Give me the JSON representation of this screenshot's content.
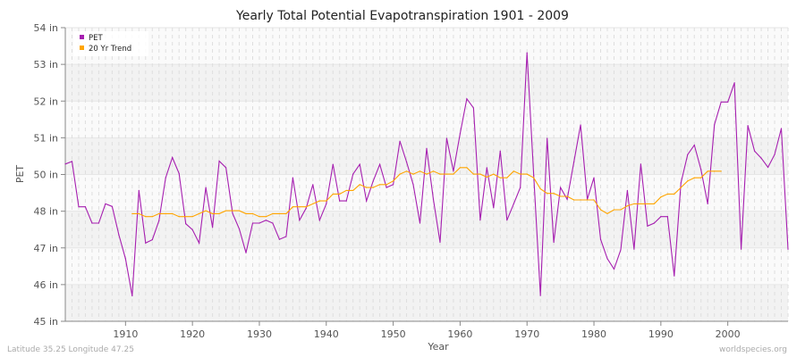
{
  "chart_data": {
    "type": "line",
    "title": "Yearly Total Potential Evapotranspiration 1901 - 2009",
    "xlabel": "Year",
    "ylabel": "PET",
    "xlim": [
      1901,
      2009
    ],
    "ylim": [
      45,
      54
    ],
    "x_ticks": [
      1910,
      1920,
      1930,
      1940,
      1950,
      1960,
      1970,
      1980,
      1990,
      2000
    ],
    "y_ticks": [
      {
        "value": 45,
        "label": "45 in"
      },
      {
        "value": 46.125,
        "label": "46 in"
      },
      {
        "value": 47.25,
        "label": "47 in"
      },
      {
        "value": 48.375,
        "label": "48 in"
      },
      {
        "value": 49.5,
        "label": "50 in"
      },
      {
        "value": 50.625,
        "label": "51 in"
      },
      {
        "value": 51.75,
        "label": "52 in"
      },
      {
        "value": 52.875,
        "label": "53 in"
      },
      {
        "value": 54,
        "label": "54 in"
      }
    ],
    "grid": true,
    "legend_position": "top-left",
    "series": [
      {
        "name": "PET",
        "color": "#a61fb0",
        "x_start": 1901,
        "values": [
          49.82,
          49.9,
          48.51,
          48.51,
          48.01,
          48.01,
          48.6,
          48.52,
          47.65,
          46.92,
          45.78,
          49.01,
          47.4,
          47.5,
          48.08,
          49.4,
          50.02,
          49.53,
          47.99,
          47.81,
          47.4,
          49.1,
          47.88,
          49.91,
          49.71,
          48.31,
          47.83,
          47.1,
          48.01,
          48.01,
          48.1,
          48.01,
          47.51,
          47.6,
          49.4,
          48.1,
          48.47,
          49.19,
          48.1,
          48.6,
          49.81,
          48.69,
          48.69,
          49.51,
          49.81,
          48.69,
          49.29,
          49.81,
          49.1,
          49.19,
          50.52,
          49.88,
          49.19,
          48.01,
          50.3,
          48.74,
          47.42,
          50.61,
          49.6,
          50.75,
          51.82,
          51.54,
          48.1,
          49.71,
          48.48,
          50.22,
          48.1,
          48.6,
          49.1,
          53.23,
          49.47,
          45.79,
          50.61,
          47.42,
          49.1,
          48.74,
          49.88,
          51.02,
          48.74,
          49.4,
          47.51,
          46.92,
          46.6,
          47.19,
          49.01,
          47.21,
          49.82,
          47.92,
          48.01,
          48.21,
          48.21,
          46.39,
          49.24,
          50.11,
          50.4,
          49.65,
          48.6,
          51.02,
          51.72,
          51.72,
          52.31,
          47.21,
          51.0,
          50.22,
          50.0,
          49.72,
          50.11,
          50.91,
          47.21
        ]
      },
      {
        "name": "20 Yr Trend",
        "color": "#ffa500",
        "x_start": 1911,
        "values": [
          48.3,
          48.3,
          48.21,
          48.21,
          48.3,
          48.3,
          48.3,
          48.21,
          48.21,
          48.21,
          48.3,
          48.39,
          48.3,
          48.3,
          48.39,
          48.39,
          48.39,
          48.3,
          48.3,
          48.21,
          48.21,
          48.3,
          48.3,
          48.3,
          48.51,
          48.51,
          48.51,
          48.6,
          48.69,
          48.69,
          48.9,
          48.9,
          49.01,
          49.01,
          49.19,
          49.1,
          49.1,
          49.19,
          49.19,
          49.3,
          49.51,
          49.6,
          49.51,
          49.6,
          49.51,
          49.6,
          49.51,
          49.51,
          49.51,
          49.71,
          49.71,
          49.51,
          49.51,
          49.42,
          49.51,
          49.4,
          49.4,
          49.6,
          49.51,
          49.51,
          49.4,
          49.06,
          48.92,
          48.92,
          48.83,
          48.83,
          48.72,
          48.72,
          48.72,
          48.72,
          48.42,
          48.3,
          48.42,
          48.42,
          48.54,
          48.6,
          48.6,
          48.6,
          48.6,
          48.81,
          48.9,
          48.9,
          49.1,
          49.3,
          49.4,
          49.4,
          49.6,
          49.6,
          49.6
        ]
      }
    ]
  },
  "footer": {
    "location": "Latitude 35.25 Longitude 47.25",
    "source": "worldspecies.org"
  }
}
